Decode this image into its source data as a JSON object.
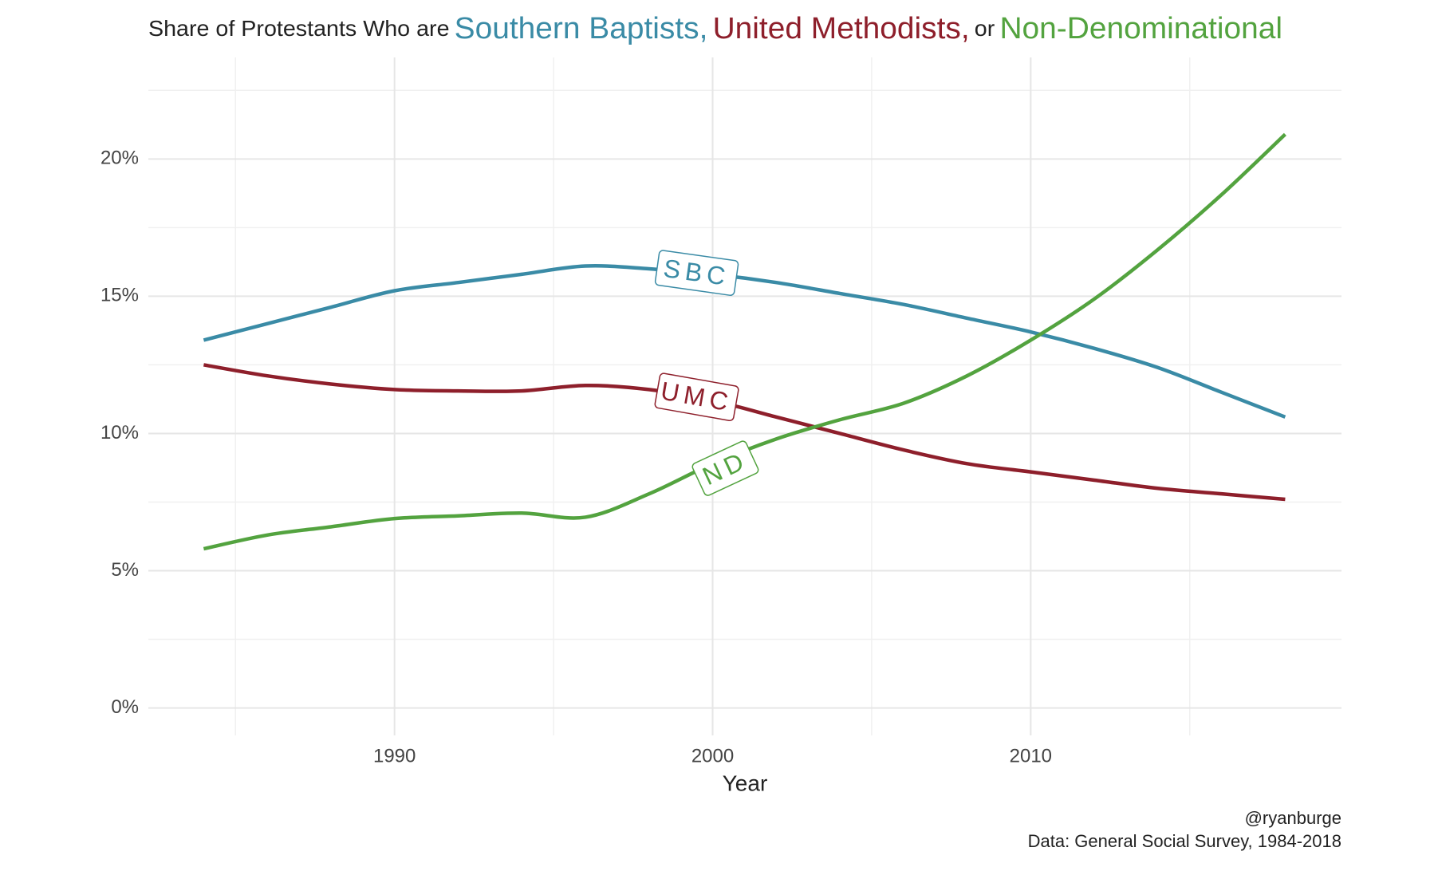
{
  "chart_data": {
    "type": "line",
    "title_parts": [
      {
        "text": "Share of Protestants  Who are",
        "color": "#222222"
      },
      {
        "text": "Southern Baptists,",
        "color": "#3a8ba6"
      },
      {
        "text": "United Methodists,",
        "color": "#8e1f2b"
      },
      {
        "text": "or",
        "color": "#222222"
      },
      {
        "text": "Non-Denominational",
        "color": "#53a33f"
      }
    ],
    "x_label": "Year",
    "caption": [
      "@ryanburge",
      "Data: General Social Survey, 1984-2018"
    ],
    "x": [
      1984,
      1986,
      1988,
      1990,
      1992,
      1994,
      1996,
      1998,
      2000,
      2002,
      2004,
      2006,
      2008,
      2010,
      2012,
      2014,
      2016,
      2018
    ],
    "series": [
      {
        "name": "SBC",
        "color": "#3a8ba6",
        "values": [
          13.4,
          14.0,
          14.6,
          15.2,
          15.5,
          15.8,
          16.1,
          16.0,
          15.8,
          15.5,
          15.1,
          14.7,
          14.2,
          13.7,
          13.1,
          12.4,
          11.5,
          10.6
        ]
      },
      {
        "name": "UMC",
        "color": "#8e1f2b",
        "values": [
          12.5,
          12.1,
          11.8,
          11.6,
          11.55,
          11.55,
          11.75,
          11.6,
          11.2,
          10.6,
          10.0,
          9.4,
          8.9,
          8.6,
          8.3,
          8.0,
          7.8,
          7.6
        ]
      },
      {
        "name": "ND",
        "color": "#53a33f",
        "values": [
          5.8,
          6.3,
          6.6,
          6.9,
          7.0,
          7.1,
          6.95,
          7.8,
          8.9,
          9.8,
          10.5,
          11.1,
          12.1,
          13.4,
          14.9,
          16.7,
          18.7,
          20.9
        ]
      }
    ],
    "xlim": [
      1982.26,
      2019.77
    ],
    "ylim": [
      -1.0,
      23.7
    ],
    "xticks": [
      1990,
      2000,
      2010
    ],
    "yticks": [
      {
        "value": 0,
        "label": "0%"
      },
      {
        "value": 5,
        "label": "5%"
      },
      {
        "value": 10,
        "label": "10%"
      },
      {
        "value": 15,
        "label": "15%"
      },
      {
        "value": 20,
        "label": "20%"
      }
    ],
    "grid": true
  }
}
